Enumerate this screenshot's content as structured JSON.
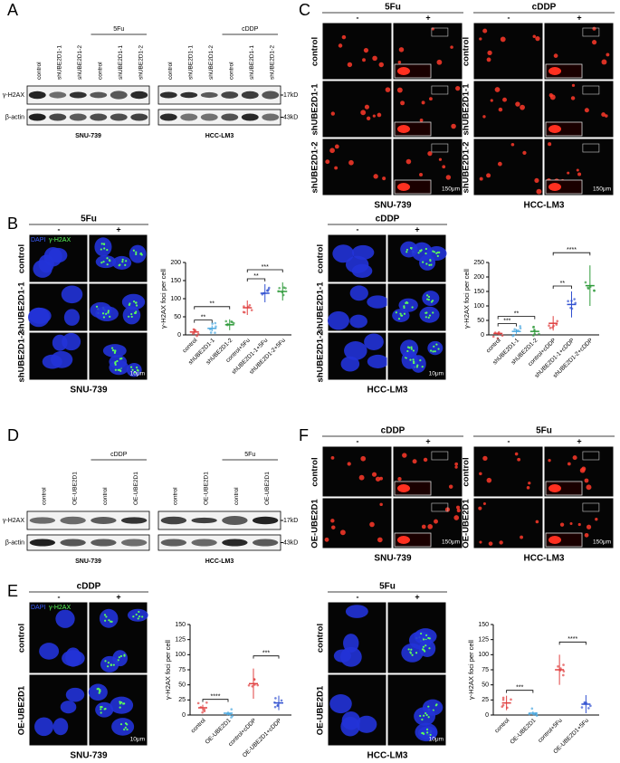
{
  "panel_A": {
    "letter": "A",
    "treatment": [
      "5Fu",
      "cDDP"
    ],
    "lanes": [
      [
        "control",
        "shUBE2D1-1",
        "shUBE2D1-2",
        "control",
        "shUBE2D1-1",
        "shUBE2D1-2"
      ],
      [
        "control",
        "shUBE2D1-1",
        "shUBE2D1-2",
        "control",
        "shUBE2D1-1",
        "shUBE2D1-2"
      ]
    ],
    "rows": [
      "γ-H2AX",
      "β-actin"
    ],
    "sizes": [
      "17kD",
      "43kD"
    ],
    "cells": [
      "SNU-739",
      "HCC-LM3"
    ]
  },
  "panel_C": {
    "letter": "C",
    "blocks": [
      {
        "treatment": "5Fu",
        "signs": [
          "-",
          "+"
        ],
        "rows": [
          "control",
          "shUBE2D1-1",
          "shUBE2D1-2"
        ],
        "scale": "150μm",
        "cell": "SNU-739"
      },
      {
        "treatment": "cDDP",
        "signs": [
          "-",
          "+"
        ],
        "rows": [
          "control",
          "shUBE2D1-1",
          "shUBE2D1-2"
        ],
        "scale": "150μm",
        "cell": "HCC-LM3"
      }
    ]
  },
  "panel_B": {
    "letter": "B",
    "blocks": [
      {
        "treatment": "5Fu",
        "signs": [
          "-",
          "+"
        ],
        "stains": [
          "DAPI",
          "γ-H2AX"
        ],
        "rows": [
          "control",
          "shUBE2D1-1",
          "shUBE2D1-2"
        ],
        "scale": "10μm",
        "cell": "SNU-739",
        "chart": {
          "type": "dot",
          "ylabel": "γ-H2AX foci per cell",
          "categories": [
            "control",
            "shUBE2D1-1",
            "shUBE2D1-2",
            "control+5Fu",
            "shUBE2D1-1+5Fu",
            "shUBE2D1-2+5Fu"
          ],
          "values": [
            8,
            18,
            28,
            75,
            115,
            120
          ],
          "errors": [
            5,
            8,
            15,
            20,
            25,
            25
          ],
          "colors": [
            "#e04040",
            "#4aa8e0",
            "#2f9a3a",
            "#e04040",
            "#3050d0",
            "#2f9a3a"
          ],
          "ylim": [
            0,
            200
          ],
          "yticks": [
            0,
            50,
            100,
            150,
            200
          ],
          "comparisons": [
            {
              "label": "**",
              "between": [
                "control",
                "shUBE2D1-1"
              ]
            },
            {
              "label": "**",
              "between": [
                "control",
                "shUBE2D1-2"
              ]
            },
            {
              "label": "**",
              "between": [
                "control+5Fu",
                "shUBE2D1-1+5Fu"
              ]
            },
            {
              "label": "***",
              "between": [
                "control+5Fu",
                "shUBE2D1-2+5Fu"
              ]
            }
          ]
        }
      },
      {
        "treatment": "cDDP",
        "signs": [
          "-",
          "+"
        ],
        "rows": [
          "control",
          "shUBE2D1-1",
          "shUBE2D1-2"
        ],
        "scale": "10μm",
        "cell": "HCC-LM3",
        "chart": {
          "type": "dot",
          "ylabel": "γ-H2AX foci per cell",
          "categories": [
            "control",
            "shUBE2D1-1",
            "shUBE2D1-2",
            "control+cDDP",
            "shUBE2D1-1+cDDP",
            "shUBE2D1-2+cDDP"
          ],
          "values": [
            5,
            12,
            12,
            40,
            105,
            170
          ],
          "errors": [
            4,
            8,
            8,
            25,
            45,
            70
          ],
          "colors": [
            "#e04040",
            "#4aa8e0",
            "#2f9a3a",
            "#e04040",
            "#3050d0",
            "#2f9a3a"
          ],
          "ylim": [
            0,
            250
          ],
          "yticks": [
            0,
            50,
            100,
            150,
            200,
            250
          ],
          "comparisons": [
            {
              "label": "***",
              "between": [
                "control",
                "shUBE2D1-1"
              ]
            },
            {
              "label": "**",
              "between": [
                "control",
                "shUBE2D1-2"
              ]
            },
            {
              "label": "**",
              "between": [
                "control+cDDP",
                "shUBE2D1-1+cDDP"
              ]
            },
            {
              "label": "****",
              "between": [
                "control+cDDP",
                "shUBE2D1-2+cDDP"
              ]
            }
          ]
        }
      }
    ]
  },
  "panel_D": {
    "letter": "D",
    "treatment": [
      "cDDP",
      "5Fu"
    ],
    "lanes": [
      [
        "control",
        "OE-UBE2D1",
        "control",
        "OE-UBE2D1"
      ],
      [
        "control",
        "OE-UBE2D1",
        "control",
        "OE-UBE2D1"
      ]
    ],
    "rows": [
      "γ-H2AX",
      "β-actin"
    ],
    "sizes": [
      "17kD",
      "43kD"
    ],
    "cells": [
      "SNU-739",
      "HCC-LM3"
    ]
  },
  "panel_F": {
    "letter": "F",
    "blocks": [
      {
        "treatment": "cDDP",
        "signs": [
          "-",
          "+"
        ],
        "rows": [
          "control",
          "OE-UBE2D1"
        ],
        "scale": "150μm",
        "cell": "SNU-739"
      },
      {
        "treatment": "5Fu",
        "signs": [
          "-",
          "+"
        ],
        "rows": [
          "control",
          "OE-UBE2D1"
        ],
        "scale": "150μm",
        "cell": "HCC-LM3"
      }
    ]
  },
  "panel_E": {
    "letter": "E",
    "blocks": [
      {
        "treatment": "cDDP",
        "signs": [
          "-",
          "+"
        ],
        "stains": [
          "DAPI",
          "γ-H2AX"
        ],
        "rows": [
          "control",
          "OE-UBE2D1"
        ],
        "scale": "10μm",
        "cell": "SNU-739",
        "chart": {
          "type": "dot",
          "ylabel": "γ-H2AX foci per cell",
          "categories": [
            "control",
            "OE-UBE2D1",
            "control+cDDP",
            "OE-UBE2D1+cDDP"
          ],
          "values": [
            12,
            3,
            52,
            20
          ],
          "errors": [
            5,
            3,
            25,
            12
          ],
          "colors": [
            "#e04040",
            "#4aa8e0",
            "#e04040",
            "#3050d0"
          ],
          "ylim": [
            0,
            150
          ],
          "yticks": [
            0,
            25,
            50,
            75,
            100,
            125,
            150
          ],
          "comparisons": [
            {
              "label": "****",
              "between": [
                "control",
                "OE-UBE2D1"
              ]
            },
            {
              "label": "***",
              "between": [
                "control+cDDP",
                "OE-UBE2D1+cDDP"
              ]
            }
          ]
        }
      },
      {
        "treatment": "5Fu",
        "signs": [
          "-",
          "+"
        ],
        "rows": [
          "control",
          "OE-UBE2D1"
        ],
        "scale": "10μm",
        "cell": "HCC-LM3",
        "chart": {
          "type": "dot",
          "ylabel": "γ-H2AX foci per cell",
          "categories": [
            "control",
            "OE-UBE2D1",
            "control+5Fu",
            "OE-UBE2D1+5Fu"
          ],
          "values": [
            20,
            3,
            75,
            18
          ],
          "errors": [
            12,
            3,
            25,
            15
          ],
          "colors": [
            "#e04040",
            "#4aa8e0",
            "#e04040",
            "#3050d0"
          ],
          "ylim": [
            0,
            150
          ],
          "yticks": [
            0,
            25,
            50,
            75,
            100,
            125,
            150
          ],
          "comparisons": [
            {
              "label": "***",
              "between": [
                "control",
                "OE-UBE2D1"
              ]
            },
            {
              "label": "****",
              "between": [
                "control+5Fu",
                "OE-UBE2D1+5Fu"
              ]
            }
          ]
        }
      }
    ]
  }
}
